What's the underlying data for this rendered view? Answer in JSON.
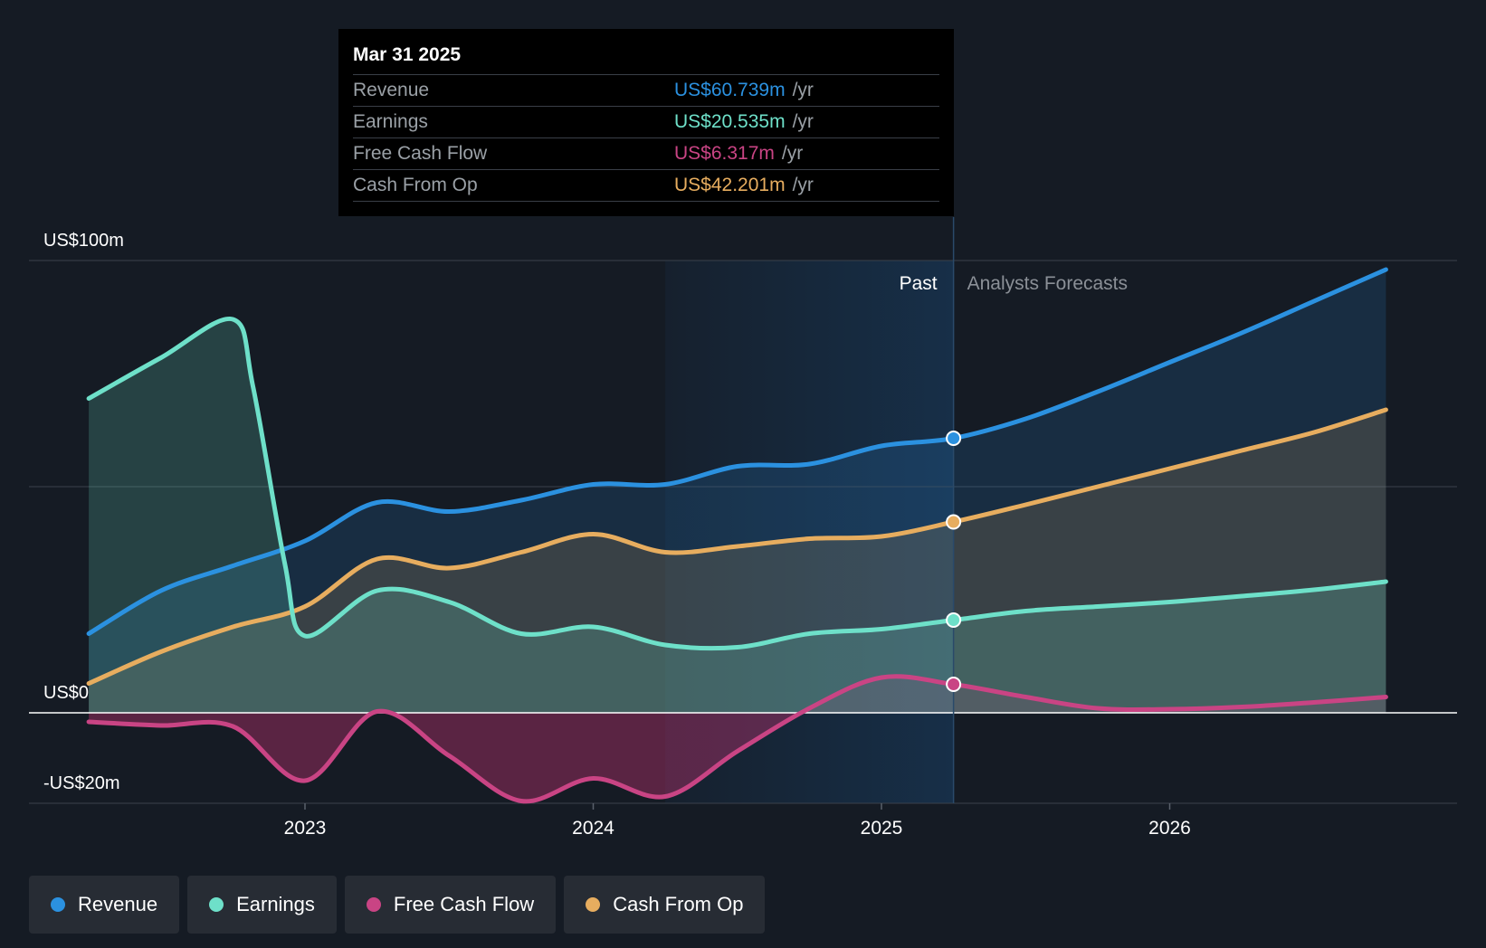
{
  "chart_data": {
    "type": "line",
    "title": "",
    "y_axis": {
      "min": -20,
      "max": 100,
      "unit": "US$m",
      "labels": [
        "US$100m",
        "US$0",
        "-US$20m"
      ]
    },
    "x_axis": {
      "ticks": [
        "2023",
        "2024",
        "2025",
        "2026"
      ]
    },
    "past_label": "Past",
    "forecast_label": "Analysts Forecasts",
    "series": [
      {
        "name": "Revenue",
        "color": "#2b91e0",
        "points": [
          [
            2022.25,
            17.5
          ],
          [
            2022.5,
            27
          ],
          [
            2022.75,
            32.5
          ],
          [
            2023.0,
            38
          ],
          [
            2023.25,
            46.5
          ],
          [
            2023.5,
            44.5
          ],
          [
            2023.75,
            47
          ],
          [
            2024.0,
            50.5
          ],
          [
            2024.25,
            50.5
          ],
          [
            2024.5,
            54.5
          ],
          [
            2024.75,
            55
          ],
          [
            2025.0,
            59
          ],
          [
            2025.25,
            60.7
          ],
          [
            2025.5,
            65
          ],
          [
            2025.75,
            71
          ],
          [
            2026.0,
            77.5
          ],
          [
            2026.25,
            84
          ],
          [
            2026.5,
            91
          ],
          [
            2026.75,
            98
          ]
        ]
      },
      {
        "name": "Cash From Op",
        "color": "#e7ad5f",
        "points": [
          [
            2022.25,
            6.5
          ],
          [
            2022.5,
            13.5
          ],
          [
            2022.75,
            19
          ],
          [
            2023.0,
            23.5
          ],
          [
            2023.25,
            34
          ],
          [
            2023.5,
            32
          ],
          [
            2023.75,
            35.5
          ],
          [
            2024.0,
            39.5
          ],
          [
            2024.25,
            35.5
          ],
          [
            2024.5,
            36.8
          ],
          [
            2024.75,
            38.5
          ],
          [
            2025.0,
            39
          ],
          [
            2025.25,
            42.2
          ],
          [
            2025.5,
            46
          ],
          [
            2025.75,
            50
          ],
          [
            2026.0,
            54
          ],
          [
            2026.25,
            58
          ],
          [
            2026.5,
            62
          ],
          [
            2026.75,
            67
          ]
        ]
      },
      {
        "name": "Earnings",
        "color": "#6ee0c9",
        "points": [
          [
            2022.25,
            69.5
          ],
          [
            2022.5,
            78.5
          ],
          [
            2022.75,
            87
          ],
          [
            2022.82,
            72
          ],
          [
            2022.93,
            33
          ],
          [
            2023.0,
            17
          ],
          [
            2023.25,
            27
          ],
          [
            2023.5,
            24.5
          ],
          [
            2023.75,
            17.5
          ],
          [
            2024.0,
            19
          ],
          [
            2024.25,
            15
          ],
          [
            2024.5,
            14.5
          ],
          [
            2024.75,
            17.5
          ],
          [
            2025.0,
            18.5
          ],
          [
            2025.25,
            20.5
          ],
          [
            2025.5,
            22.5
          ],
          [
            2025.75,
            23.5
          ],
          [
            2026.0,
            24.5
          ],
          [
            2026.25,
            25.8
          ],
          [
            2026.5,
            27.2
          ],
          [
            2026.75,
            29
          ]
        ]
      },
      {
        "name": "Free Cash Flow",
        "color": "#c94484",
        "points": [
          [
            2022.25,
            -2
          ],
          [
            2022.5,
            -2.8
          ],
          [
            2022.75,
            -3
          ],
          [
            2023.0,
            -15
          ],
          [
            2023.25,
            0.3
          ],
          [
            2023.5,
            -9.5
          ],
          [
            2023.75,
            -19.5
          ],
          [
            2024.0,
            -14.5
          ],
          [
            2024.25,
            -18.5
          ],
          [
            2024.5,
            -8.5
          ],
          [
            2024.75,
            1
          ],
          [
            2025.0,
            7.8
          ],
          [
            2025.25,
            6.3
          ],
          [
            2025.5,
            3.5
          ],
          [
            2025.75,
            1
          ],
          [
            2026.0,
            0.8
          ],
          [
            2026.25,
            1.3
          ],
          [
            2026.5,
            2.3
          ],
          [
            2026.75,
            3.5
          ]
        ]
      }
    ],
    "highlight_date": 2025.25
  },
  "tooltip": {
    "date": "Mar 31 2025",
    "rows": [
      {
        "label": "Revenue",
        "value": "US$60.739m",
        "unit": "/yr",
        "color": "#2b91e0"
      },
      {
        "label": "Earnings",
        "value": "US$20.535m",
        "unit": "/yr",
        "color": "#6ee0c9"
      },
      {
        "label": "Free Cash Flow",
        "value": "US$6.317m",
        "unit": "/yr",
        "color": "#c94484"
      },
      {
        "label": "Cash From Op",
        "value": "US$42.201m",
        "unit": "/yr",
        "color": "#e7ad5f"
      }
    ]
  },
  "legend": [
    {
      "label": "Revenue",
      "color": "#2b91e0"
    },
    {
      "label": "Earnings",
      "color": "#6ee0c9"
    },
    {
      "label": "Free Cash Flow",
      "color": "#c94484"
    },
    {
      "label": "Cash From Op",
      "color": "#e7ad5f"
    }
  ]
}
